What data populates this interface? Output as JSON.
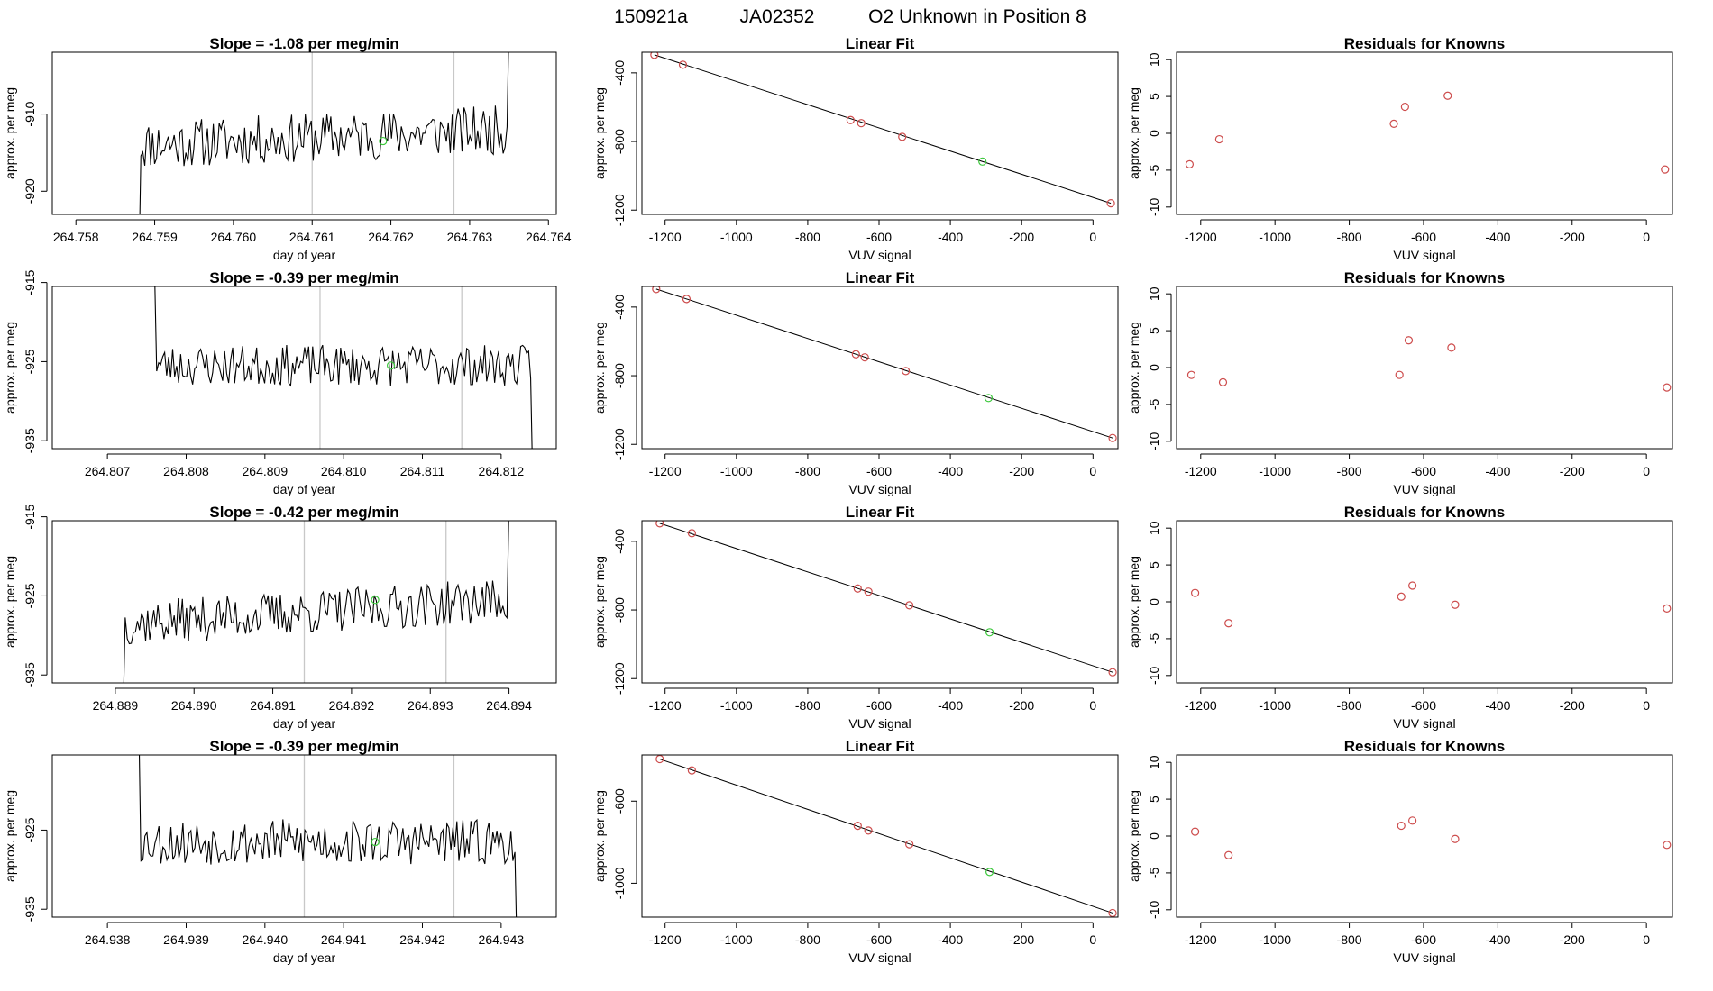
{
  "header": {
    "run_id": "150921a",
    "tank": "JA02352",
    "description": "O2 Unknown in Position  8"
  },
  "colors": {
    "known": "#cd4c4c",
    "unknown": "#3cc83c",
    "trace": "#000000",
    "vline": "#c8c8c8"
  },
  "chart_data": [
    {
      "type": "line",
      "panel": "timeseries",
      "title": "Slope =  -1.08  per meg/min",
      "xlabel": "day of year",
      "ylabel": "approx. per meg",
      "xlim": [
        264.7577,
        264.7641
      ],
      "ylim": [
        -923,
        -902
      ],
      "xticks": [
        "264.758",
        "264.759",
        "264.760",
        "264.761",
        "264.762",
        "264.763",
        "264.764"
      ],
      "xtick_values": [
        264.758,
        264.759,
        264.76,
        264.761,
        264.762,
        264.763,
        264.764
      ],
      "yticks": [
        "-910",
        "-920"
      ],
      "ytick_values": [
        -910,
        -920
      ],
      "trace_start": 264.7588,
      "trace_end": 264.7635,
      "trace_level": -913,
      "trace_amp": 3.2,
      "drift": 2.0,
      "seed": 11,
      "edge_start": -930,
      "edge_end": -898,
      "vlines": [
        264.761,
        264.7628
      ],
      "unknown_point": {
        "x": 264.7619,
        "y": -913.5
      }
    },
    {
      "type": "scatter",
      "panel": "linear_fit",
      "title": "Linear Fit",
      "xlabel": "VUV signal",
      "ylabel": "approx. per meg",
      "xlim": [
        -1265,
        70
      ],
      "ylim": [
        -1225,
        -280
      ],
      "xticks": [
        "-1200",
        "-1000",
        "-800",
        "-600",
        "-400",
        "-200",
        "0"
      ],
      "xtick_values": [
        -1200,
        -1000,
        -800,
        -600,
        -400,
        -200,
        0
      ],
      "yticks": [
        "-400",
        "-800",
        "-1200"
      ],
      "ytick_values": [
        -400,
        -800,
        -1200
      ],
      "fit_line": {
        "x0": -1230,
        "y0": -295,
        "x1": 50,
        "y1": -1160
      },
      "knowns": [
        [
          -1230,
          -295
        ],
        [
          -1150,
          -353
        ],
        [
          -680,
          -675
        ],
        [
          -650,
          -693
        ],
        [
          -535,
          -773
        ],
        [
          50,
          -1160
        ]
      ],
      "unknown": [
        -310,
        -917
      ]
    },
    {
      "type": "scatter",
      "panel": "residuals",
      "title": "Residuals for Knowns",
      "xlabel": "VUV signal",
      "ylabel": "approx. per meg",
      "xlim": [
        -1265,
        70
      ],
      "ylim": [
        -11,
        11
      ],
      "xticks": [
        "-1200",
        "-1000",
        "-800",
        "-600",
        "-400",
        "-200",
        "0"
      ],
      "xtick_values": [
        -1200,
        -1000,
        -800,
        -600,
        -400,
        -200,
        0
      ],
      "yticks": [
        "10",
        "5",
        "0",
        "-5",
        "-10"
      ],
      "ytick_values": [
        10,
        5,
        0,
        -5,
        -10
      ],
      "knowns": [
        [
          -1230,
          -4.2
        ],
        [
          -1150,
          -0.8
        ],
        [
          -680,
          1.3
        ],
        [
          -650,
          3.6
        ],
        [
          -535,
          5.1
        ],
        [
          50,
          -4.9
        ]
      ]
    },
    {
      "type": "line",
      "panel": "timeseries",
      "title": "Slope =  -0.39  per meg/min",
      "xlabel": "day of year",
      "ylabel": "approx. per meg",
      "xlim": [
        264.8063,
        264.8127
      ],
      "ylim": [
        -936,
        -915.5
      ],
      "xticks": [
        "264.807",
        "264.808",
        "264.809",
        "264.810",
        "264.811",
        "264.812"
      ],
      "xtick_values": [
        264.807,
        264.808,
        264.809,
        264.81,
        264.811,
        264.812
      ],
      "yticks": [
        "-915",
        "-925",
        "-935"
      ],
      "ytick_values": [
        -915,
        -925,
        -935
      ],
      "trace_start": 264.8076,
      "trace_end": 264.8124,
      "trace_level": -925.5,
      "trace_amp": 2.6,
      "drift": 0.0,
      "seed": 23,
      "edge_start": -914,
      "edge_end": -940,
      "vlines": [
        264.8097,
        264.8115
      ],
      "unknown_point": {
        "x": 264.8106,
        "y": -925.5
      }
    },
    {
      "type": "scatter",
      "panel": "linear_fit",
      "title": "Linear Fit",
      "xlabel": "VUV signal",
      "ylabel": "approx. per meg",
      "xlim": [
        -1265,
        70
      ],
      "ylim": [
        -1225,
        -280
      ],
      "xticks": [
        "-1200",
        "-1000",
        "-800",
        "-600",
        "-400",
        "-200",
        "0"
      ],
      "xtick_values": [
        -1200,
        -1000,
        -800,
        -600,
        -400,
        -200,
        0
      ],
      "yticks": [
        "-400",
        "-800",
        "-1200"
      ],
      "ytick_values": [
        -400,
        -800,
        -1200
      ],
      "fit_line": {
        "x0": -1225,
        "y0": -295,
        "x1": 55,
        "y1": -1163
      },
      "knowns": [
        [
          -1225,
          -295
        ],
        [
          -1140,
          -353
        ],
        [
          -665,
          -675
        ],
        [
          -640,
          -693
        ],
        [
          -525,
          -773
        ],
        [
          55,
          -1163
        ]
      ],
      "unknown": [
        -293,
        -930
      ]
    },
    {
      "type": "scatter",
      "panel": "residuals",
      "title": "Residuals for Knowns",
      "xlabel": "VUV signal",
      "ylabel": "approx. per meg",
      "xlim": [
        -1265,
        70
      ],
      "ylim": [
        -11,
        11
      ],
      "xticks": [
        "-1200",
        "-1000",
        "-800",
        "-600",
        "-400",
        "-200",
        "0"
      ],
      "xtick_values": [
        -1200,
        -1000,
        -800,
        -600,
        -400,
        -200,
        0
      ],
      "yticks": [
        "10",
        "5",
        "0",
        "-5",
        "-10"
      ],
      "ytick_values": [
        10,
        5,
        0,
        -5,
        -10
      ],
      "knowns": [
        [
          -1225,
          -1.0
        ],
        [
          -1140,
          -2.0
        ],
        [
          -665,
          -1.0
        ],
        [
          -640,
          3.7
        ],
        [
          -525,
          2.7
        ],
        [
          55,
          -2.7
        ]
      ]
    },
    {
      "type": "line",
      "panel": "timeseries",
      "title": "Slope =  -0.42  per meg/min",
      "xlabel": "day of year",
      "ylabel": "approx. per meg",
      "xlim": [
        264.8882,
        264.8946
      ],
      "ylim": [
        -936,
        -915.5
      ],
      "xticks": [
        "264.889",
        "264.890",
        "264.891",
        "264.892",
        "264.893",
        "264.894"
      ],
      "xtick_values": [
        264.889,
        264.89,
        264.891,
        264.892,
        264.893,
        264.894
      ],
      "yticks": [
        "-915",
        "-925",
        "-935"
      ],
      "ytick_values": [
        -915,
        -925,
        -935
      ],
      "trace_start": 264.8891,
      "trace_end": 264.894,
      "trace_level": -927,
      "trace_amp": 2.8,
      "drift": 3.0,
      "seed": 37,
      "edge_start": -940,
      "edge_end": -913,
      "vlines": [
        264.8914,
        264.8932
      ],
      "unknown_point": {
        "x": 264.8923,
        "y": -925.5
      }
    },
    {
      "type": "scatter",
      "panel": "linear_fit",
      "title": "Linear Fit",
      "xlabel": "VUV signal",
      "ylabel": "approx. per meg",
      "xlim": [
        -1265,
        70
      ],
      "ylim": [
        -1225,
        -280
      ],
      "xticks": [
        "-1200",
        "-1000",
        "-800",
        "-600",
        "-400",
        "-200",
        "0"
      ],
      "xtick_values": [
        -1200,
        -1000,
        -800,
        -600,
        -400,
        -200,
        0
      ],
      "yticks": [
        "-400",
        "-800",
        "-1200"
      ],
      "ytick_values": [
        -400,
        -800,
        -1200
      ],
      "fit_line": {
        "x0": -1215,
        "y0": -295,
        "x1": 55,
        "y1": -1163
      },
      "knowns": [
        [
          -1215,
          -295
        ],
        [
          -1125,
          -353
        ],
        [
          -660,
          -675
        ],
        [
          -630,
          -693
        ],
        [
          -515,
          -773
        ],
        [
          55,
          -1163
        ]
      ],
      "unknown": [
        -290,
        -930
      ]
    },
    {
      "type": "scatter",
      "panel": "residuals",
      "title": "Residuals for Knowns",
      "xlabel": "VUV signal",
      "ylabel": "approx. per meg",
      "xlim": [
        -1265,
        70
      ],
      "ylim": [
        -11,
        11
      ],
      "xticks": [
        "-1200",
        "-1000",
        "-800",
        "-600",
        "-400",
        "-200",
        "0"
      ],
      "xtick_values": [
        -1200,
        -1000,
        -800,
        -600,
        -400,
        -200,
        0
      ],
      "yticks": [
        "10",
        "5",
        "0",
        "-5",
        "-10"
      ],
      "ytick_values": [
        10,
        5,
        0,
        -5,
        -10
      ],
      "knowns": [
        [
          -1215,
          1.2
        ],
        [
          -1125,
          -2.9
        ],
        [
          -660,
          0.7
        ],
        [
          -630,
          2.2
        ],
        [
          -515,
          -0.4
        ],
        [
          55,
          -0.9
        ]
      ]
    },
    {
      "type": "line",
      "panel": "timeseries",
      "title": "Slope =  -0.39  per meg/min",
      "xlabel": "day of year",
      "ylabel": "approx. per meg",
      "xlim": [
        264.9373,
        264.9437
      ],
      "ylim": [
        -936,
        -915.5
      ],
      "xticks": [
        "264.938",
        "264.939",
        "264.940",
        "264.941",
        "264.942",
        "264.943"
      ],
      "xtick_values": [
        264.938,
        264.939,
        264.94,
        264.941,
        264.942,
        264.943
      ],
      "yticks": [
        "-925",
        "-935"
      ],
      "ytick_values": [
        -925,
        -935
      ],
      "trace_start": 264.9384,
      "trace_end": 264.9432,
      "trace_level": -926.5,
      "trace_amp": 2.9,
      "drift": 0.0,
      "seed": 53,
      "edge_start": -912,
      "edge_end": -940,
      "vlines": [
        264.9405,
        264.9424
      ],
      "unknown_point": {
        "x": 264.9414,
        "y": -926.5
      }
    },
    {
      "type": "scatter",
      "panel": "linear_fit",
      "title": "Linear Fit",
      "xlabel": "VUV signal",
      "ylabel": "approx. per meg",
      "xlim": [
        -1265,
        70
      ],
      "ylim": [
        -1165,
        -375
      ],
      "xticks": [
        "-1200",
        "-1000",
        "-800",
        "-600",
        "-400",
        "-200",
        "0"
      ],
      "xtick_values": [
        -1200,
        -1000,
        -800,
        -600,
        -400,
        -200,
        0
      ],
      "yticks": [
        "-600",
        "-1000"
      ],
      "ytick_values": [
        -600,
        -1000
      ],
      "fit_line": {
        "x0": -1215,
        "y0": -395,
        "x1": 55,
        "y1": -1145
      },
      "knowns": [
        [
          -1215,
          -395
        ],
        [
          -1125,
          -450
        ],
        [
          -660,
          -720
        ],
        [
          -630,
          -743
        ],
        [
          -515,
          -810
        ],
        [
          55,
          -1145
        ]
      ],
      "unknown": [
        -290,
        -945
      ]
    },
    {
      "type": "scatter",
      "panel": "residuals",
      "title": "Residuals for Knowns",
      "xlabel": "VUV signal",
      "ylabel": "approx. per meg",
      "xlim": [
        -1265,
        70
      ],
      "ylim": [
        -11,
        11
      ],
      "xticks": [
        "-1200",
        "-1000",
        "-800",
        "-600",
        "-400",
        "-200",
        "0"
      ],
      "xtick_values": [
        -1200,
        -1000,
        -800,
        -600,
        -400,
        -200,
        0
      ],
      "yticks": [
        "10",
        "5",
        "0",
        "-5",
        "-10"
      ],
      "ytick_values": [
        10,
        5,
        0,
        -5,
        -10
      ],
      "knowns": [
        [
          -1215,
          0.6
        ],
        [
          -1125,
          -2.6
        ],
        [
          -660,
          1.4
        ],
        [
          -630,
          2.1
        ],
        [
          -515,
          -0.4
        ],
        [
          55,
          -1.2
        ]
      ]
    }
  ]
}
